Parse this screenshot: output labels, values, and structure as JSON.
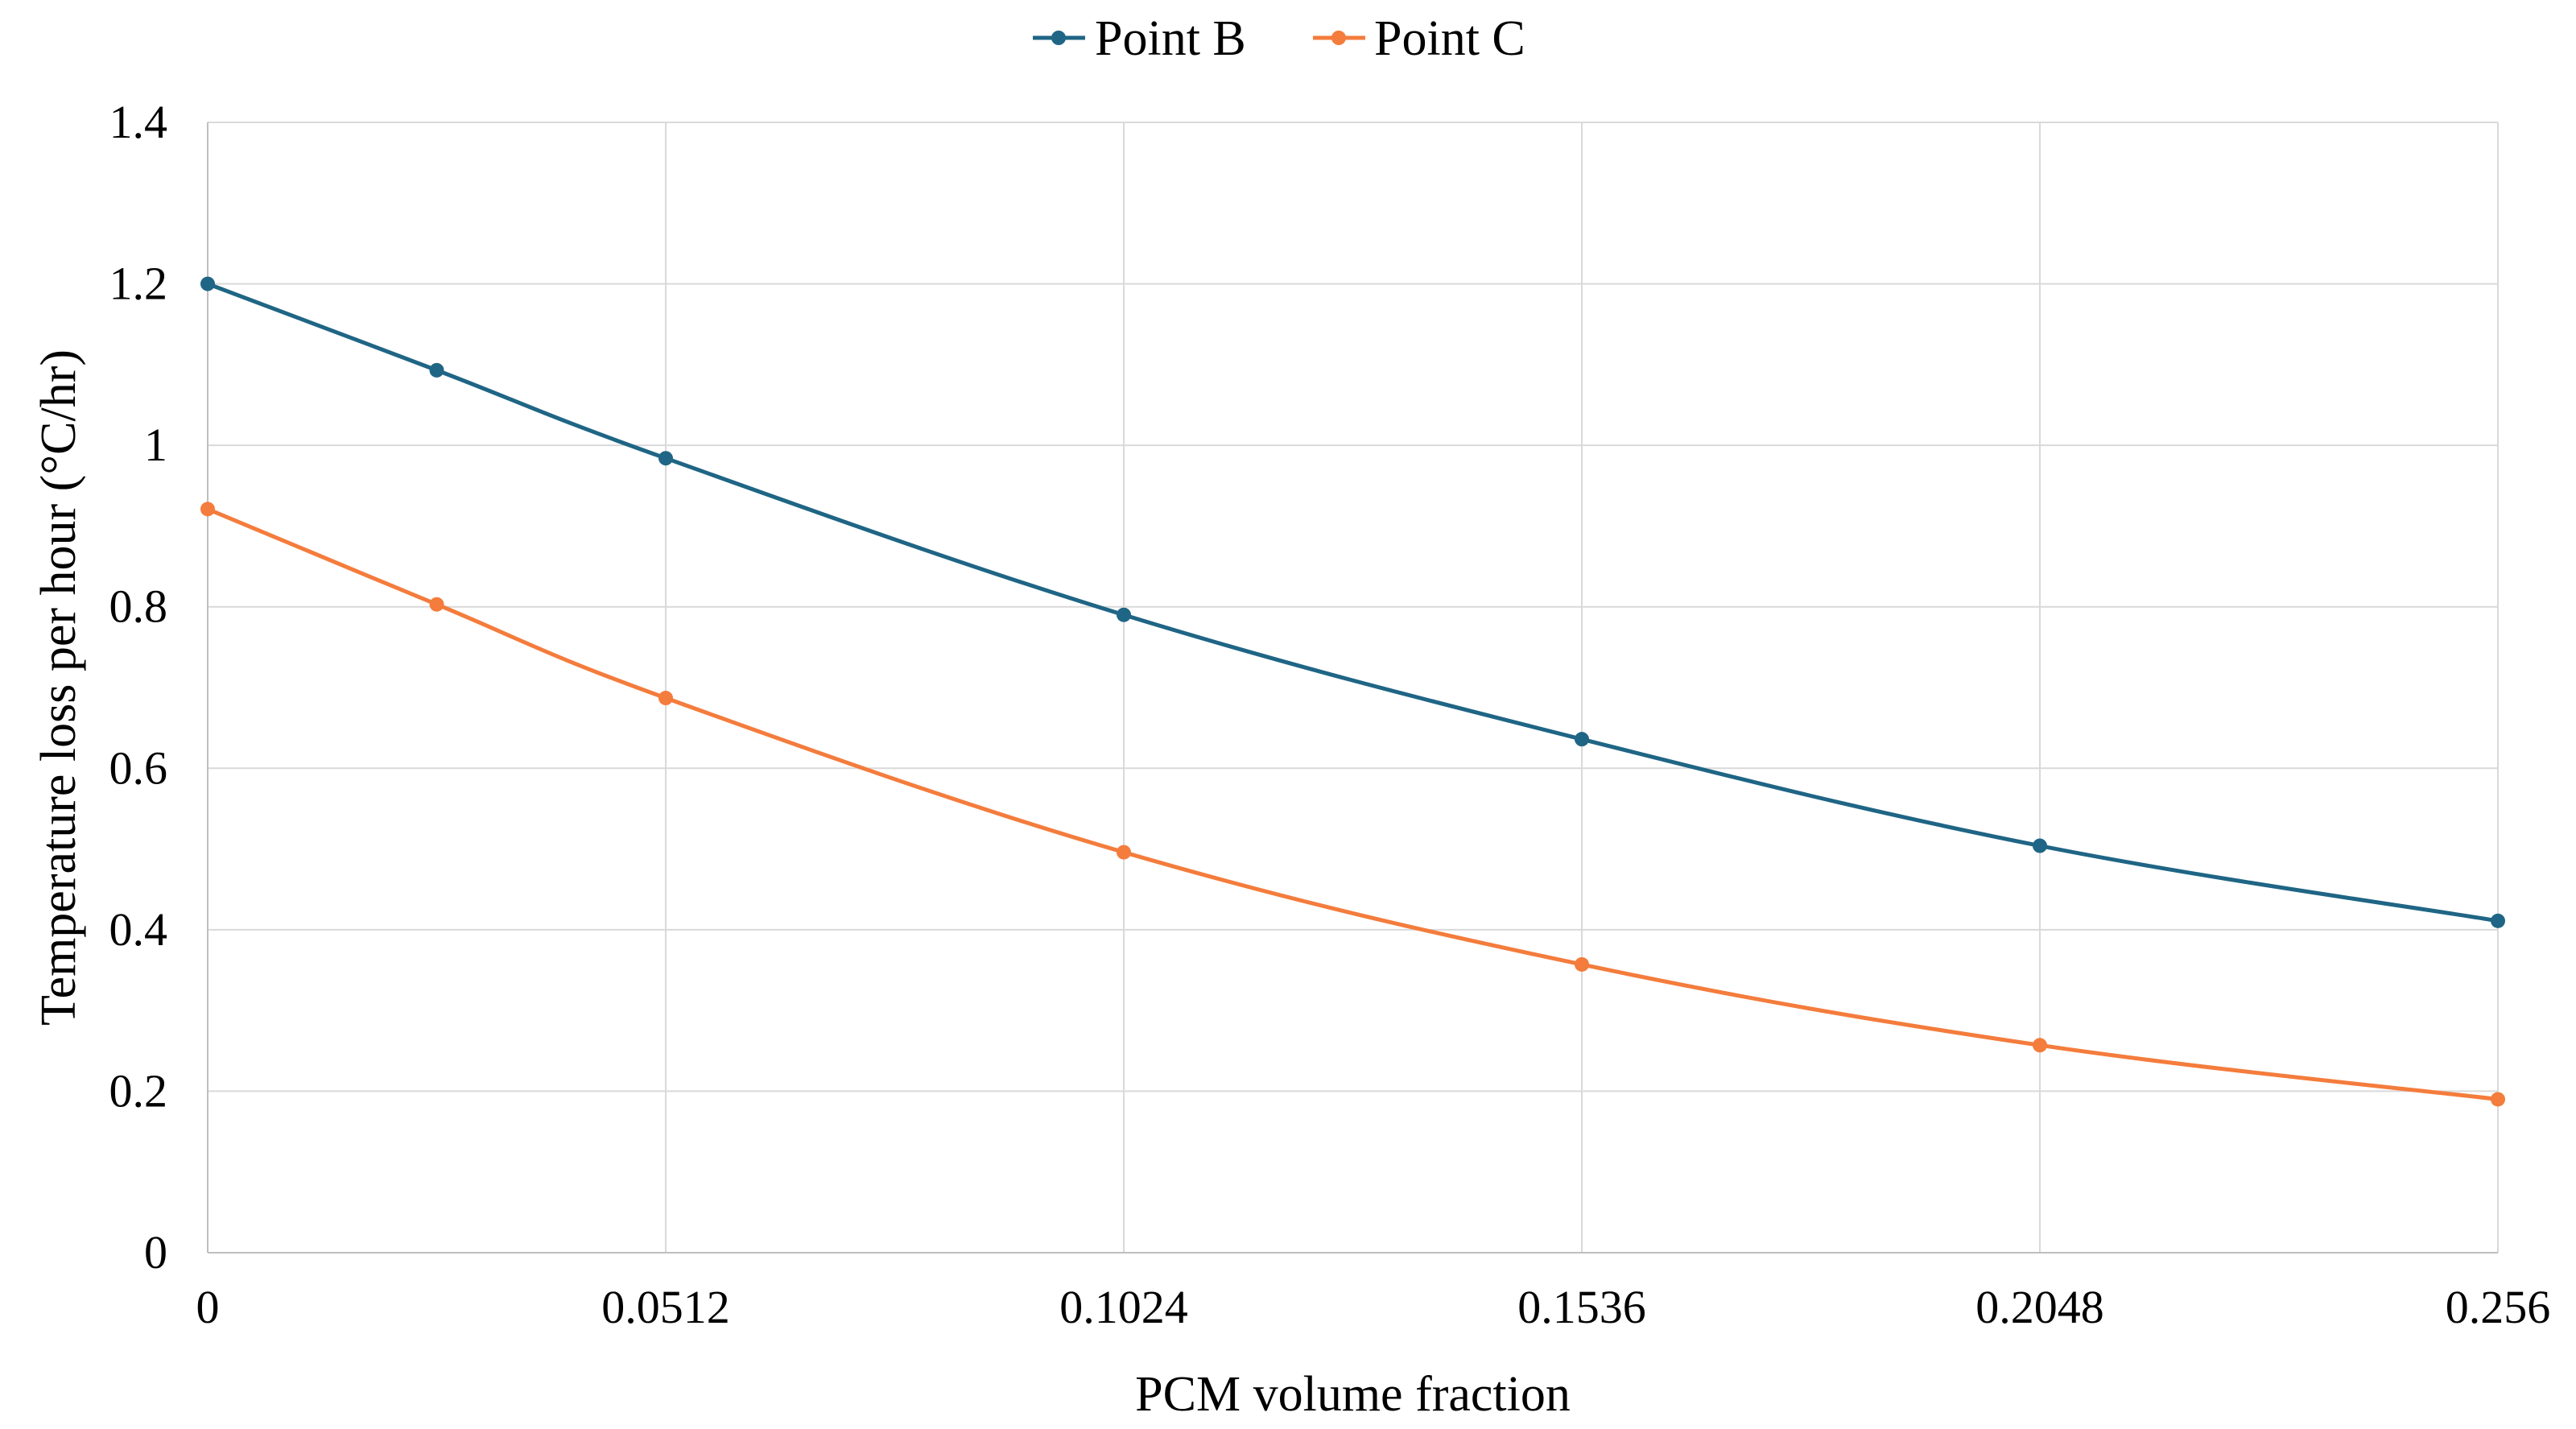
{
  "chart_data": {
    "type": "line",
    "title": "",
    "xlabel": "PCM volume fraction",
    "ylabel": "Temperature loss per hour (°C/hr)",
    "xlim": [
      0,
      0.256
    ],
    "ylim": [
      0,
      1.4
    ],
    "x_ticks": [
      "0",
      "0.0512",
      "0.1024",
      "0.1536",
      "0.2048",
      "0.256"
    ],
    "y_ticks": [
      "0",
      "0.2",
      "0.4",
      "0.6",
      "0.8",
      "1",
      "1.2",
      "1.4"
    ],
    "grid": true,
    "legend_position": "top-center",
    "x": [
      0,
      0.0256,
      0.0512,
      0.1024,
      0.1536,
      0.2048,
      0.256
    ],
    "series": [
      {
        "name": "Point B",
        "color": "#1f6585",
        "values": [
          1.2,
          1.093,
          0.984,
          0.79,
          0.636,
          0.504,
          0.411
        ]
      },
      {
        "name": "Point C",
        "color": "#f47c3c",
        "values": [
          0.921,
          0.803,
          0.687,
          0.496,
          0.357,
          0.257,
          0.19
        ]
      }
    ]
  }
}
